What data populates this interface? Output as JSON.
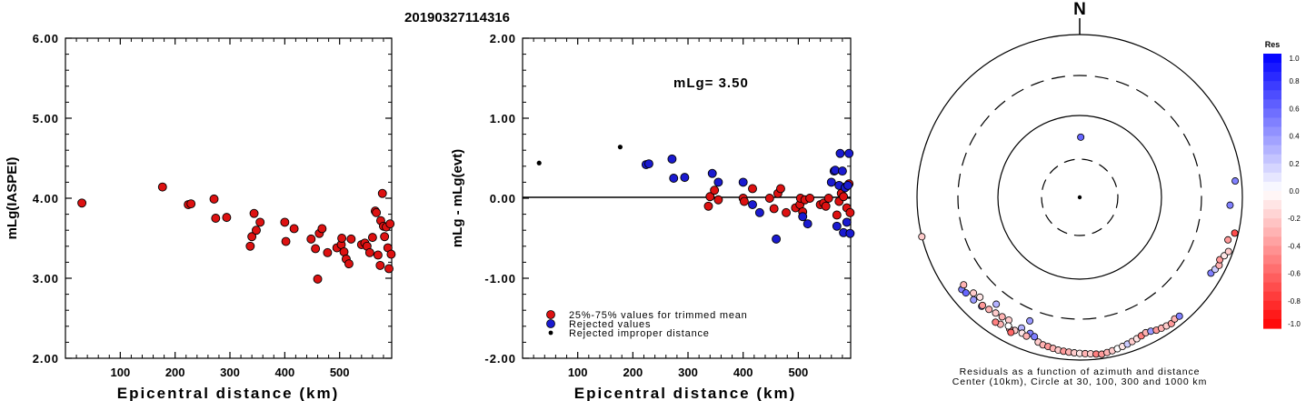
{
  "title": "20190327114316",
  "colors": {
    "used": "#dd1111",
    "rejected": "#1a1ad0",
    "improper": "#000000"
  },
  "chart_data": [
    {
      "type": "scatter",
      "ylabel": "mLg(IASPEI)",
      "xlabel": "Epicentral distance (km)",
      "xlim": [
        0,
        595
      ],
      "ylim": [
        2.0,
        6.0
      ],
      "xticks": [
        "100",
        "200",
        "300",
        "400",
        "500"
      ],
      "yticks": [
        "2.00",
        "3.00",
        "4.00",
        "5.00",
        "6.00"
      ],
      "series": [
        {
          "key": "used",
          "points": [
            [
              30,
              3.94
            ],
            [
              177,
              4.14
            ],
            [
              224,
              3.92
            ],
            [
              229,
              3.93
            ],
            [
              271,
              3.99
            ],
            [
              274,
              3.75
            ],
            [
              294,
              3.76
            ],
            [
              337,
              3.4
            ],
            [
              340,
              3.52
            ],
            [
              344,
              3.81
            ],
            [
              348,
              3.6
            ],
            [
              355,
              3.7
            ],
            [
              400,
              3.7
            ],
            [
              402,
              3.46
            ],
            [
              417,
              3.62
            ],
            [
              448,
              3.49
            ],
            [
              456,
              3.37
            ],
            [
              460,
              2.99
            ],
            [
              463,
              3.56
            ],
            [
              468,
              3.62
            ],
            [
              478,
              3.32
            ],
            [
              495,
              3.38
            ],
            [
              503,
              3.42
            ],
            [
              504,
              3.5
            ],
            [
              508,
              3.33
            ],
            [
              512,
              3.24
            ],
            [
              517,
              3.18
            ],
            [
              521,
              3.49
            ],
            [
              540,
              3.42
            ],
            [
              546,
              3.44
            ],
            [
              550,
              3.4
            ],
            [
              555,
              3.32
            ],
            [
              560,
              3.51
            ],
            [
              565,
              3.84
            ],
            [
              567,
              3.82
            ],
            [
              570,
              3.29
            ],
            [
              574,
              3.16
            ],
            [
              575,
              3.72
            ],
            [
              578,
              4.06
            ],
            [
              580,
              3.65
            ],
            [
              582,
              3.52
            ],
            [
              585,
              3.64
            ],
            [
              588,
              3.38
            ],
            [
              590,
              3.12
            ],
            [
              592,
              3.68
            ],
            [
              594,
              3.3
            ]
          ]
        }
      ]
    },
    {
      "type": "scatter",
      "ylabel": "mLg - mLg(evt)",
      "xlabel": "Epicentral distance (km)",
      "annotation": "mLg= 3.50",
      "xlim": [
        0,
        595
      ],
      "ylim": [
        -2.0,
        2.0
      ],
      "xticks": [
        "100",
        "200",
        "300",
        "400",
        "500"
      ],
      "yticks": [
        "-2.00",
        "-1.00",
        "0.00",
        "1.00",
        "2.00"
      ],
      "legend": [
        "25%-75% values for trimmed mean",
        "Rejected values",
        "Rejected improper distance"
      ],
      "series": [
        {
          "key": "used",
          "name": "25%-75% values for trimmed mean",
          "points": [
            [
              337,
              -0.1
            ],
            [
              340,
              0.02
            ],
            [
              348,
              0.1
            ],
            [
              355,
              -0.02
            ],
            [
              400,
              0.0
            ],
            [
              402,
              -0.04
            ],
            [
              417,
              0.12
            ],
            [
              448,
              0.0
            ],
            [
              456,
              -0.13
            ],
            [
              463,
              0.06
            ],
            [
              468,
              0.12
            ],
            [
              478,
              -0.18
            ],
            [
              495,
              -0.12
            ],
            [
              503,
              -0.08
            ],
            [
              504,
              0.0
            ],
            [
              508,
              -0.17
            ],
            [
              512,
              -0.02
            ],
            [
              521,
              0.0
            ],
            [
              540,
              -0.08
            ],
            [
              546,
              -0.06
            ],
            [
              550,
              -0.1
            ],
            [
              555,
              0.0
            ],
            [
              570,
              -0.21
            ],
            [
              574,
              -0.04
            ],
            [
              578,
              0.06
            ],
            [
              582,
              0.02
            ],
            [
              585,
              0.14
            ],
            [
              588,
              -0.12
            ],
            [
              592,
              0.18
            ],
            [
              594,
              -0.18
            ]
          ]
        },
        {
          "key": "rejected",
          "name": "Rejected values",
          "points": [
            [
              224,
              0.42
            ],
            [
              229,
              0.43
            ],
            [
              271,
              0.49
            ],
            [
              274,
              0.25
            ],
            [
              294,
              0.26
            ],
            [
              344,
              0.31
            ],
            [
              355,
              0.2
            ],
            [
              400,
              0.2
            ],
            [
              417,
              -0.08
            ],
            [
              430,
              -0.18
            ],
            [
              460,
              -0.51
            ],
            [
              508,
              -0.23
            ],
            [
              517,
              -0.32
            ],
            [
              560,
              0.2
            ],
            [
              565,
              0.34
            ],
            [
              567,
              0.35
            ],
            [
              570,
              -0.35
            ],
            [
              574,
              0.16
            ],
            [
              576,
              0.56
            ],
            [
              580,
              0.34
            ],
            [
              582,
              -0.43
            ],
            [
              585,
              0.13
            ],
            [
              588,
              -0.3
            ],
            [
              590,
              0.16
            ],
            [
              592,
              0.56
            ],
            [
              594,
              -0.44
            ]
          ]
        },
        {
          "key": "improper",
          "name": "Rejected improper distance",
          "points": [
            [
              30,
              0.44
            ],
            [
              177,
              0.64
            ]
          ]
        }
      ]
    },
    {
      "type": "polar-scatter",
      "north_label": "N",
      "caption_line1": "Residuals as a function of azimuth and distance",
      "caption_line2": "Center (10km), Circle at 30, 100, 300 and 1000 km",
      "rings": [
        {
          "km": 30,
          "style": "dashed"
        },
        {
          "km": 100,
          "style": "solid"
        },
        {
          "km": 300,
          "style": "dashed"
        },
        {
          "km": 1000,
          "style": "solid"
        }
      ],
      "colorbar": {
        "title": "Res",
        "ticks": [
          "1.0",
          "0.8",
          "0.6",
          "0.4",
          "0.2",
          "0.0",
          "-0.2",
          "-0.4",
          "-0.6",
          "-0.8",
          "-1.0"
        ]
      },
      "points": [
        {
          "az": 1,
          "dist": 55,
          "res": 0.6
        },
        {
          "az": 256,
          "dist": 1000,
          "res": -0.2
        },
        {
          "az": 232,
          "dist": 680,
          "res": 0.5
        },
        {
          "az": 230,
          "dist": 660,
          "res": 0.6
        },
        {
          "az": 226,
          "dist": 640,
          "res": 0.4
        },
        {
          "az": 222,
          "dist": 620,
          "res": 0.5
        },
        {
          "az": 233,
          "dist": 600,
          "res": -0.3
        },
        {
          "az": 228,
          "dist": 560,
          "res": -0.2
        },
        {
          "az": 225,
          "dist": 530,
          "res": -0.1
        },
        {
          "az": 222,
          "dist": 600,
          "res": -0.4
        },
        {
          "az": 219,
          "dist": 580,
          "res": -0.3
        },
        {
          "az": 216,
          "dist": 560,
          "res": -0.2
        },
        {
          "az": 213,
          "dist": 550,
          "res": -0.3
        },
        {
          "az": 210,
          "dist": 540,
          "res": -0.2
        },
        {
          "az": 218,
          "dist": 450,
          "res": 0.3
        },
        {
          "az": 202,
          "dist": 420,
          "res": 0.4
        },
        {
          "az": 204,
          "dist": 560,
          "res": 0.3
        },
        {
          "az": 200,
          "dist": 590,
          "res": 0.5
        },
        {
          "az": 198,
          "dist": 620,
          "res": 0.5
        },
        {
          "az": 203,
          "dist": 640,
          "res": -0.1
        },
        {
          "az": 201,
          "dist": 660,
          "res": -0.3
        },
        {
          "az": 206,
          "dist": 650,
          "res": -0.2
        },
        {
          "az": 208,
          "dist": 670,
          "res": -0.4
        },
        {
          "az": 209,
          "dist": 630,
          "res": 0.0
        },
        {
          "az": 212,
          "dist": 680,
          "res": -0.3
        },
        {
          "az": 214,
          "dist": 700,
          "res": -0.5
        },
        {
          "az": 207,
          "dist": 720,
          "res": -0.6
        },
        {
          "az": 196,
          "dist": 700,
          "res": -0.2
        },
        {
          "az": 194,
          "dist": 730,
          "res": -0.3
        },
        {
          "az": 192,
          "dist": 740,
          "res": -0.4
        },
        {
          "az": 190,
          "dist": 760,
          "res": -0.3
        },
        {
          "az": 188,
          "dist": 780,
          "res": -0.2
        },
        {
          "az": 186,
          "dist": 790,
          "res": -0.4
        },
        {
          "az": 184,
          "dist": 800,
          "res": -0.3
        },
        {
          "az": 182,
          "dist": 810,
          "res": -0.2
        },
        {
          "az": 180,
          "dist": 820,
          "res": -0.1
        },
        {
          "az": 178,
          "dist": 830,
          "res": -0.3
        },
        {
          "az": 176,
          "dist": 840,
          "res": -0.2
        },
        {
          "az": 174,
          "dist": 860,
          "res": -0.5
        },
        {
          "az": 172,
          "dist": 880,
          "res": -0.4
        },
        {
          "az": 170,
          "dist": 860,
          "res": -0.3
        },
        {
          "az": 168,
          "dist": 840,
          "res": -0.2
        },
        {
          "az": 166,
          "dist": 820,
          "res": 0.0
        },
        {
          "az": 164,
          "dist": 800,
          "res": -0.1
        },
        {
          "az": 162,
          "dist": 780,
          "res": 0.2
        },
        {
          "az": 160,
          "dist": 760,
          "res": -0.2
        },
        {
          "az": 158,
          "dist": 740,
          "res": -0.1
        },
        {
          "az": 156,
          "dist": 720,
          "res": -0.5
        },
        {
          "az": 154,
          "dist": 700,
          "res": -0.3
        },
        {
          "az": 152,
          "dist": 720,
          "res": 0.4
        },
        {
          "az": 150,
          "dist": 760,
          "res": -0.4
        },
        {
          "az": 148,
          "dist": 780,
          "res": -0.3
        },
        {
          "az": 146,
          "dist": 800,
          "res": -0.2
        },
        {
          "az": 144,
          "dist": 820,
          "res": -0.4
        },
        {
          "az": 142,
          "dist": 780,
          "res": -0.3
        },
        {
          "az": 140,
          "dist": 800,
          "res": 0.5
        },
        {
          "az": 120,
          "dist": 720,
          "res": 0.5
        },
        {
          "az": 118,
          "dist": 760,
          "res": 0.2
        },
        {
          "az": 116,
          "dist": 800,
          "res": -0.3
        },
        {
          "az": 114,
          "dist": 760,
          "res": -0.4
        },
        {
          "az": 112,
          "dist": 820,
          "res": -0.1
        },
        {
          "az": 110,
          "dist": 880,
          "res": -0.2
        },
        {
          "az": 106,
          "dist": 780,
          "res": -0.4
        },
        {
          "az": 103,
          "dist": 900,
          "res": -0.7
        },
        {
          "az": 84,
          "dist": 830,
          "res": 0.5
        },
        {
          "az": 93,
          "dist": 700,
          "res": 0.5
        }
      ]
    }
  ]
}
